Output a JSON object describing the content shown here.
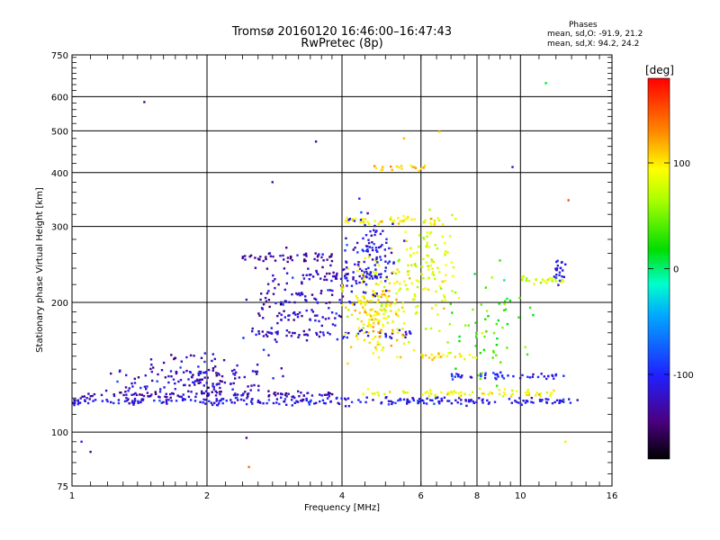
{
  "header": {
    "title_line1": "Tromsø 20160120 16:46:00–16:47:43",
    "title_line2": "RwPretec (8p)",
    "phases_title": "Phases",
    "phases_o": "mean, sd,O: -91.9, 21.2",
    "phases_x": "mean, sd,X:  94.2, 24.2"
  },
  "colorbar": {
    "label": "[deg]",
    "range": [
      -180,
      180
    ],
    "ticks": [
      100,
      0,
      -100
    ],
    "tick_labels": [
      "100",
      "0",
      "-100"
    ]
  },
  "chart_data": {
    "type": "scatter",
    "xlabel": "Frequency [MHz]",
    "ylabel": "Stationary phase Virtual Height [km]",
    "x_scale": "log",
    "y_scale": "log",
    "xlim": [
      1,
      16
    ],
    "ylim": [
      75,
      750
    ],
    "x_ticks": [
      1,
      2,
      4,
      6,
      8,
      10,
      16
    ],
    "x_tick_labels": [
      "1",
      "2",
      "4",
      "6",
      "8",
      "10",
      "16"
    ],
    "y_ticks": [
      75,
      100,
      200,
      300,
      400,
      500,
      600,
      750
    ],
    "y_tick_labels": [
      "75",
      "100",
      "200",
      "300",
      "400",
      "500",
      "600",
      "750"
    ],
    "grid": true,
    "color_quantity": "phase [deg]",
    "echo_traces": [
      {
        "f_start": 1.0,
        "f_end": 13.5,
        "height": 118,
        "phase": -110,
        "n": 260
      },
      {
        "f_start": 1.05,
        "f_end": 3.9,
        "height": 122,
        "phase": -125,
        "n": 90
      },
      {
        "f_start": 4.2,
        "f_end": 12.0,
        "height": 123,
        "phase": 90,
        "n": 70
      },
      {
        "f_start": 2.5,
        "f_end": 5.8,
        "height": 169,
        "phase": -115,
        "n": 55
      },
      {
        "f_start": 3.2,
        "f_end": 5.2,
        "height": 230,
        "phase": -120,
        "n": 45
      },
      {
        "f_start": 4.0,
        "f_end": 6.6,
        "height": 310,
        "phase": 95,
        "n": 50
      },
      {
        "f_start": 2.4,
        "f_end": 3.8,
        "height": 255,
        "phase": -135,
        "n": 45
      },
      {
        "f_start": 7.0,
        "f_end": 12.5,
        "height": 135,
        "phase": -105,
        "n": 50
      },
      {
        "f_start": 10.0,
        "f_end": 12.5,
        "height": 225,
        "phase": 80,
        "n": 25
      },
      {
        "f_start": 4.6,
        "f_end": 6.2,
        "height": 410,
        "phase": 110,
        "n": 20
      },
      {
        "f_start": 6.0,
        "f_end": 8.0,
        "height": 150,
        "phase": 100,
        "n": 25
      }
    ],
    "diffuse_clusters": [
      {
        "f_center": 1.9,
        "f_spread": 0.32,
        "h_center": 133,
        "h_spread": 0.1,
        "phase": -120,
        "n": 170
      },
      {
        "f_center": 3.3,
        "f_spread": 0.25,
        "h_center": 200,
        "h_spread": 0.2,
        "phase": -125,
        "n": 150
      },
      {
        "f_center": 4.8,
        "f_spread": 0.14,
        "h_center": 195,
        "h_spread": 0.22,
        "phase": 95,
        "n": 200
      },
      {
        "f_center": 4.6,
        "f_spread": 0.12,
        "h_center": 260,
        "h_spread": 0.2,
        "phase": -110,
        "n": 110
      },
      {
        "f_center": 6.2,
        "f_spread": 0.14,
        "h_center": 240,
        "h_spread": 0.25,
        "phase": 85,
        "n": 110
      },
      {
        "f_center": 8.5,
        "f_spread": 0.18,
        "h_center": 170,
        "h_spread": 0.25,
        "phase": 40,
        "n": 60
      },
      {
        "f_center": 12.2,
        "f_spread": 0.03,
        "h_center": 235,
        "h_spread": 0.06,
        "phase": -105,
        "n": 22
      }
    ],
    "isolated_points": [
      {
        "f": 1.45,
        "h": 583,
        "phase": -140
      },
      {
        "f": 1.05,
        "h": 95,
        "phase": -105
      },
      {
        "f": 1.1,
        "h": 90,
        "phase": -140
      },
      {
        "f": 2.45,
        "h": 97,
        "phase": -140
      },
      {
        "f": 2.48,
        "h": 83,
        "phase": 140
      },
      {
        "f": 11.4,
        "h": 645,
        "phase": 10
      },
      {
        "f": 12.6,
        "h": 95,
        "phase": 100
      },
      {
        "f": 12.8,
        "h": 345,
        "phase": 150
      },
      {
        "f": 9.6,
        "h": 412,
        "phase": -120
      },
      {
        "f": 3.5,
        "h": 472,
        "phase": -135
      },
      {
        "f": 6.6,
        "h": 497,
        "phase": 100
      },
      {
        "f": 5.5,
        "h": 480,
        "phase": 115
      },
      {
        "f": 2.8,
        "h": 380,
        "phase": -120
      }
    ]
  }
}
